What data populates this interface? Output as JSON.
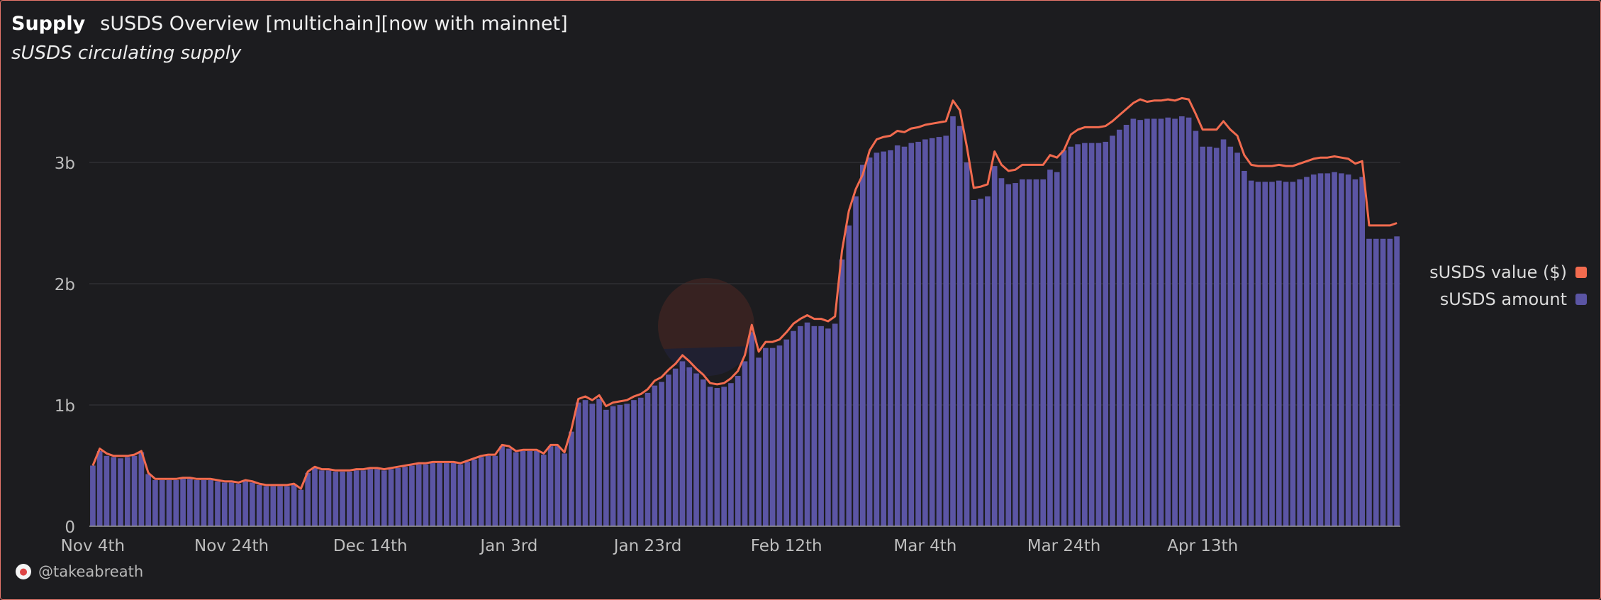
{
  "header": {
    "tab": "Supply",
    "title": "sUSDS Overview [multichain][now with mainnet]",
    "subtitle": "sUSDS circulating supply"
  },
  "credit": {
    "text": "@takeabreath",
    "icon": "avatar-icon"
  },
  "colors": {
    "background": "#1c1c1f",
    "bar": "#5b55a4",
    "line": "#f26b4f",
    "grid": "#38383c",
    "border": "#e8766b"
  },
  "chart_data": {
    "type": "bar",
    "x_start": "2024-11-04",
    "x_ticks": [
      "Nov 4th",
      "Nov 24th",
      "Dec 14th",
      "Jan 3rd",
      "Jan 23rd",
      "Feb 12th",
      "Mar 4th",
      "Mar 24th",
      "Apr 13th"
    ],
    "y_ticks": [
      "0",
      "1b",
      "2b",
      "3b"
    ],
    "ylim": [
      0,
      3.6
    ],
    "y_unit": "billions",
    "grid": true,
    "legend_position": "right",
    "series": [
      {
        "name": "sUSDS value ($)",
        "type": "line",
        "color": "#f26b4f",
        "values": [
          0.5,
          0.64,
          0.6,
          0.58,
          0.58,
          0.58,
          0.59,
          0.62,
          0.44,
          0.39,
          0.39,
          0.39,
          0.39,
          0.4,
          0.4,
          0.39,
          0.39,
          0.39,
          0.38,
          0.37,
          0.37,
          0.36,
          0.38,
          0.37,
          0.35,
          0.34,
          0.34,
          0.34,
          0.34,
          0.35,
          0.31,
          0.45,
          0.49,
          0.47,
          0.47,
          0.46,
          0.46,
          0.46,
          0.47,
          0.47,
          0.48,
          0.48,
          0.47,
          0.48,
          0.49,
          0.5,
          0.51,
          0.52,
          0.52,
          0.53,
          0.53,
          0.53,
          0.53,
          0.52,
          0.54,
          0.56,
          0.58,
          0.59,
          0.59,
          0.67,
          0.66,
          0.62,
          0.63,
          0.63,
          0.63,
          0.6,
          0.67,
          0.67,
          0.61,
          0.8,
          1.05,
          1.07,
          1.04,
          1.08,
          0.99,
          1.02,
          1.03,
          1.04,
          1.07,
          1.09,
          1.13,
          1.2,
          1.23,
          1.29,
          1.34,
          1.41,
          1.36,
          1.3,
          1.25,
          1.18,
          1.17,
          1.18,
          1.22,
          1.28,
          1.41,
          1.66,
          1.44,
          1.52,
          1.52,
          1.54,
          1.6,
          1.67,
          1.71,
          1.74,
          1.71,
          1.71,
          1.69,
          1.73,
          2.27,
          2.6,
          2.78,
          2.9,
          3.1,
          3.19,
          3.21,
          3.22,
          3.26,
          3.25,
          3.28,
          3.29,
          3.31,
          3.32,
          3.33,
          3.34,
          3.51,
          3.43,
          3.13,
          2.79,
          2.8,
          2.82,
          3.09,
          2.98,
          2.93,
          2.94,
          2.98,
          2.98,
          2.98,
          2.98,
          3.06,
          3.04,
          3.1,
          3.23,
          3.27,
          3.29,
          3.29,
          3.29,
          3.3,
          3.34,
          3.39,
          3.44,
          3.49,
          3.52,
          3.5,
          3.51,
          3.51,
          3.52,
          3.51,
          3.53,
          3.52,
          3.4,
          3.27,
          3.27,
          3.27,
          3.34,
          3.27,
          3.22,
          3.06,
          2.98,
          2.97,
          2.97,
          2.97,
          2.98,
          2.97,
          2.97,
          2.99,
          3.01,
          3.03,
          3.04,
          3.04,
          3.05,
          3.04,
          3.03,
          2.99,
          3.01,
          2.48,
          2.48,
          2.48,
          2.48,
          2.5
        ]
      },
      {
        "name": "sUSDS amount",
        "type": "bar",
        "color": "#5b55a4",
        "values": [
          0.5,
          0.62,
          0.58,
          0.57,
          0.56,
          0.57,
          0.58,
          0.61,
          0.43,
          0.38,
          0.38,
          0.38,
          0.38,
          0.39,
          0.39,
          0.38,
          0.38,
          0.38,
          0.37,
          0.36,
          0.36,
          0.35,
          0.37,
          0.36,
          0.34,
          0.33,
          0.33,
          0.33,
          0.33,
          0.34,
          0.3,
          0.44,
          0.48,
          0.46,
          0.46,
          0.45,
          0.45,
          0.45,
          0.46,
          0.46,
          0.47,
          0.47,
          0.46,
          0.47,
          0.48,
          0.49,
          0.5,
          0.51,
          0.51,
          0.52,
          0.52,
          0.52,
          0.52,
          0.51,
          0.53,
          0.55,
          0.57,
          0.58,
          0.58,
          0.66,
          0.64,
          0.61,
          0.62,
          0.62,
          0.62,
          0.59,
          0.66,
          0.66,
          0.6,
          0.78,
          1.02,
          1.04,
          1.01,
          1.05,
          0.96,
          0.99,
          1.0,
          1.01,
          1.04,
          1.06,
          1.1,
          1.16,
          1.19,
          1.25,
          1.3,
          1.36,
          1.31,
          1.26,
          1.21,
          1.15,
          1.14,
          1.15,
          1.18,
          1.24,
          1.36,
          1.6,
          1.39,
          1.47,
          1.47,
          1.49,
          1.54,
          1.61,
          1.65,
          1.68,
          1.65,
          1.65,
          1.63,
          1.67,
          2.2,
          2.48,
          2.72,
          2.98,
          3.04,
          3.08,
          3.09,
          3.1,
          3.14,
          3.13,
          3.16,
          3.17,
          3.19,
          3.2,
          3.21,
          3.22,
          3.38,
          3.3,
          3.0,
          2.69,
          2.7,
          2.72,
          2.97,
          2.87,
          2.82,
          2.83,
          2.86,
          2.86,
          2.86,
          2.86,
          2.94,
          2.92,
          3.1,
          3.13,
          3.15,
          3.16,
          3.16,
          3.16,
          3.17,
          3.22,
          3.27,
          3.31,
          3.36,
          3.35,
          3.36,
          3.36,
          3.36,
          3.37,
          3.36,
          3.38,
          3.37,
          3.26,
          3.13,
          3.13,
          3.12,
          3.19,
          3.13,
          3.08,
          2.93,
          2.85,
          2.84,
          2.84,
          2.84,
          2.85,
          2.84,
          2.84,
          2.86,
          2.88,
          2.9,
          2.91,
          2.91,
          2.92,
          2.91,
          2.9,
          2.86,
          2.88,
          2.37,
          2.37,
          2.37,
          2.37,
          2.39
        ]
      }
    ]
  }
}
